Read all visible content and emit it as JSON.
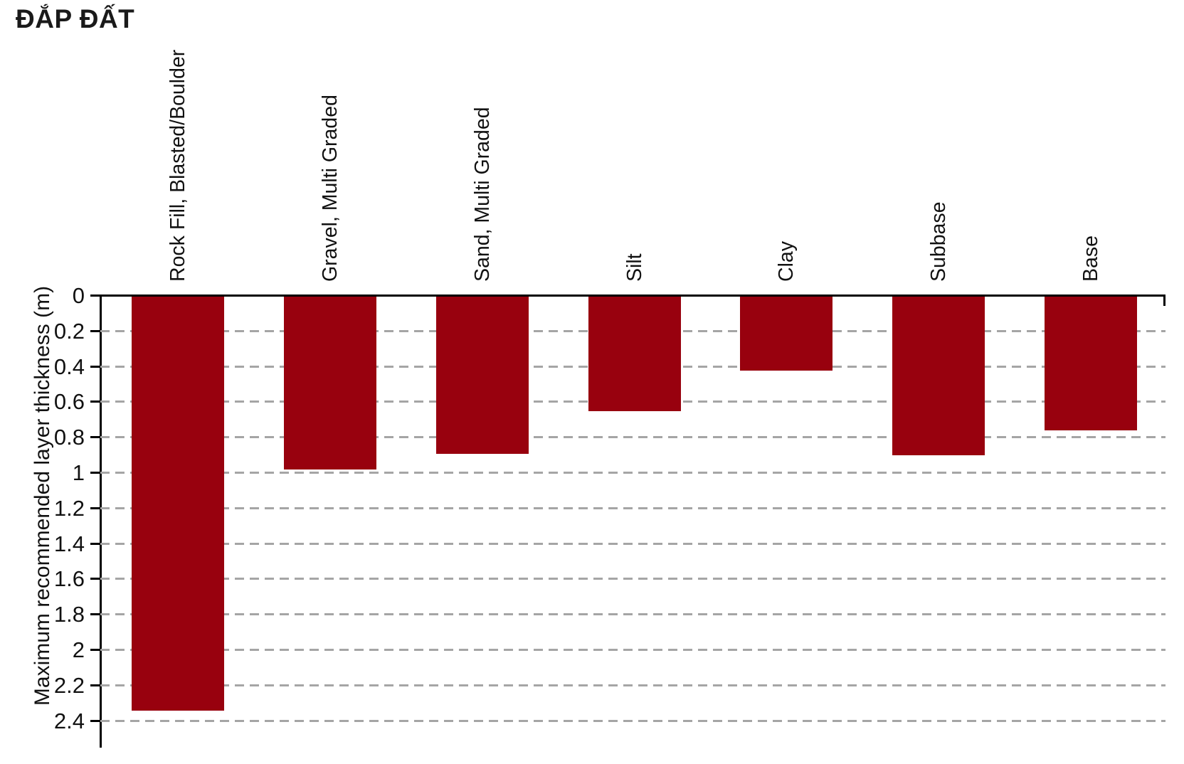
{
  "chart_data": {
    "type": "bar",
    "title": "ĐẮP ĐẤT",
    "ylabel": "Maximum recommended layer thickness (m)",
    "categories": [
      "Rock Fill, Blasted/Boulder",
      "Gravel, Multi Graded",
      "Sand, Multi Graded",
      "Silt",
      "Clay",
      "Subbase",
      "Base"
    ],
    "values": [
      2.34,
      0.98,
      0.89,
      0.65,
      0.42,
      0.9,
      0.76
    ],
    "unit": "m",
    "orientation": "columns hang downward from the zero baseline at top",
    "ylim": [
      0,
      2.4
    ],
    "ytick_labels": [
      "0",
      "0.2",
      "0.4",
      "0.6",
      "0.8",
      "1",
      "1.2",
      "1.4",
      "1.6",
      "1.8",
      "2",
      "2.2",
      "2.4"
    ],
    "legend": null,
    "grid": "horizontal dashed gridlines",
    "bar_color": "#98010E",
    "gridline_color": "#a5a5a5",
    "axis_color": "#000000",
    "text_color": "#111111",
    "note": "first category label is clipped at the top edge of the image"
  }
}
